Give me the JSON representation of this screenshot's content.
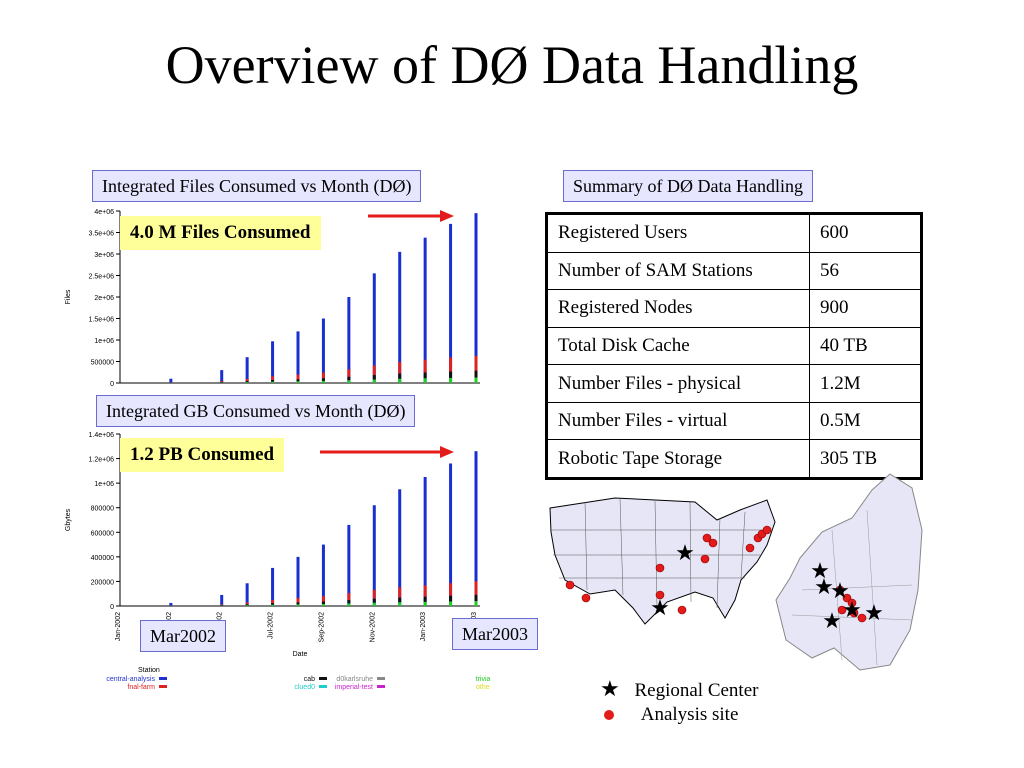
{
  "slide": {
    "title": "Overview of DØ Data Handling"
  },
  "captions": {
    "files_chart": "Integrated Files Consumed vs Month (DØ)",
    "gb_chart": "Integrated GB Consumed vs Month (DØ)",
    "summary": "Summary of DØ Data Handling"
  },
  "callouts": {
    "files": "4.0 M Files Consumed",
    "gb": "1.2 PB Consumed",
    "start": "Mar2002",
    "end": "Mar2003"
  },
  "summary_table": [
    {
      "label": "Registered Users",
      "value": "600"
    },
    {
      "label": "Number of SAM Stations",
      "value": "56"
    },
    {
      "label": "Registered Nodes",
      "value": "900"
    },
    {
      "label": "Total Disk Cache",
      "value": "40 TB"
    },
    {
      "label": "Number Files - physical",
      "value": "1.2M"
    },
    {
      "label": "Number Files - virtual",
      "value": "0.5M"
    },
    {
      "label": "Robotic Tape Storage",
      "value": "305 TB"
    }
  ],
  "map_legend": {
    "regional": "Regional Center",
    "analysis": "Analysis site"
  },
  "chart_data": [
    {
      "type": "bar",
      "ylabel": "Files",
      "yticks": [
        "4e+06",
        "3.5e+06",
        "3e+06",
        "2.5e+06",
        "2e+06",
        "1.5e+06",
        "1e+06",
        "500000",
        "0"
      ],
      "ylim": [
        0,
        4000000
      ],
      "x": [
        2,
        4,
        5,
        6,
        7,
        8,
        9,
        10,
        11,
        12,
        13,
        14
      ],
      "values": [
        100000,
        300000,
        600000,
        970000,
        1200000,
        1500000,
        2000000,
        2550000,
        3050000,
        3380000,
        3700000,
        3950000
      ]
    },
    {
      "type": "bar",
      "ylabel": "Gbytes",
      "xlabel": "Date",
      "yticks": [
        "1.4e+06",
        "1.2e+06",
        "1e+06",
        "800000",
        "600000",
        "400000",
        "200000",
        "0"
      ],
      "ylim": [
        0,
        1400000
      ],
      "xticks": [
        "Jan-2002",
        "Mar-2002",
        "May-2002",
        "Jul-2002",
        "Sep-2002",
        "Nov-2002",
        "Jan-2003",
        "Mar-2003"
      ],
      "x": [
        2,
        4,
        5,
        6,
        7,
        8,
        9,
        10,
        11,
        12,
        13,
        14
      ],
      "values": [
        25000,
        90000,
        185000,
        310000,
        400000,
        500000,
        660000,
        820000,
        950000,
        1050000,
        1160000,
        1260000
      ],
      "legend_title": "Station",
      "series": [
        {
          "name": "central-analysis",
          "color": "#2233cc"
        },
        {
          "name": "fnal-farm",
          "color": "#dd2222"
        },
        {
          "name": "cab",
          "color": "#111111"
        },
        {
          "name": "clued0",
          "color": "#22cccc"
        },
        {
          "name": "d0karlsruhe",
          "color": "#888888"
        },
        {
          "name": "imperial-test",
          "color": "#cc22cc"
        },
        {
          "name": "trivial",
          "color": "#22cc22"
        },
        {
          "name": "other",
          "color": "#dddd22"
        }
      ]
    }
  ]
}
